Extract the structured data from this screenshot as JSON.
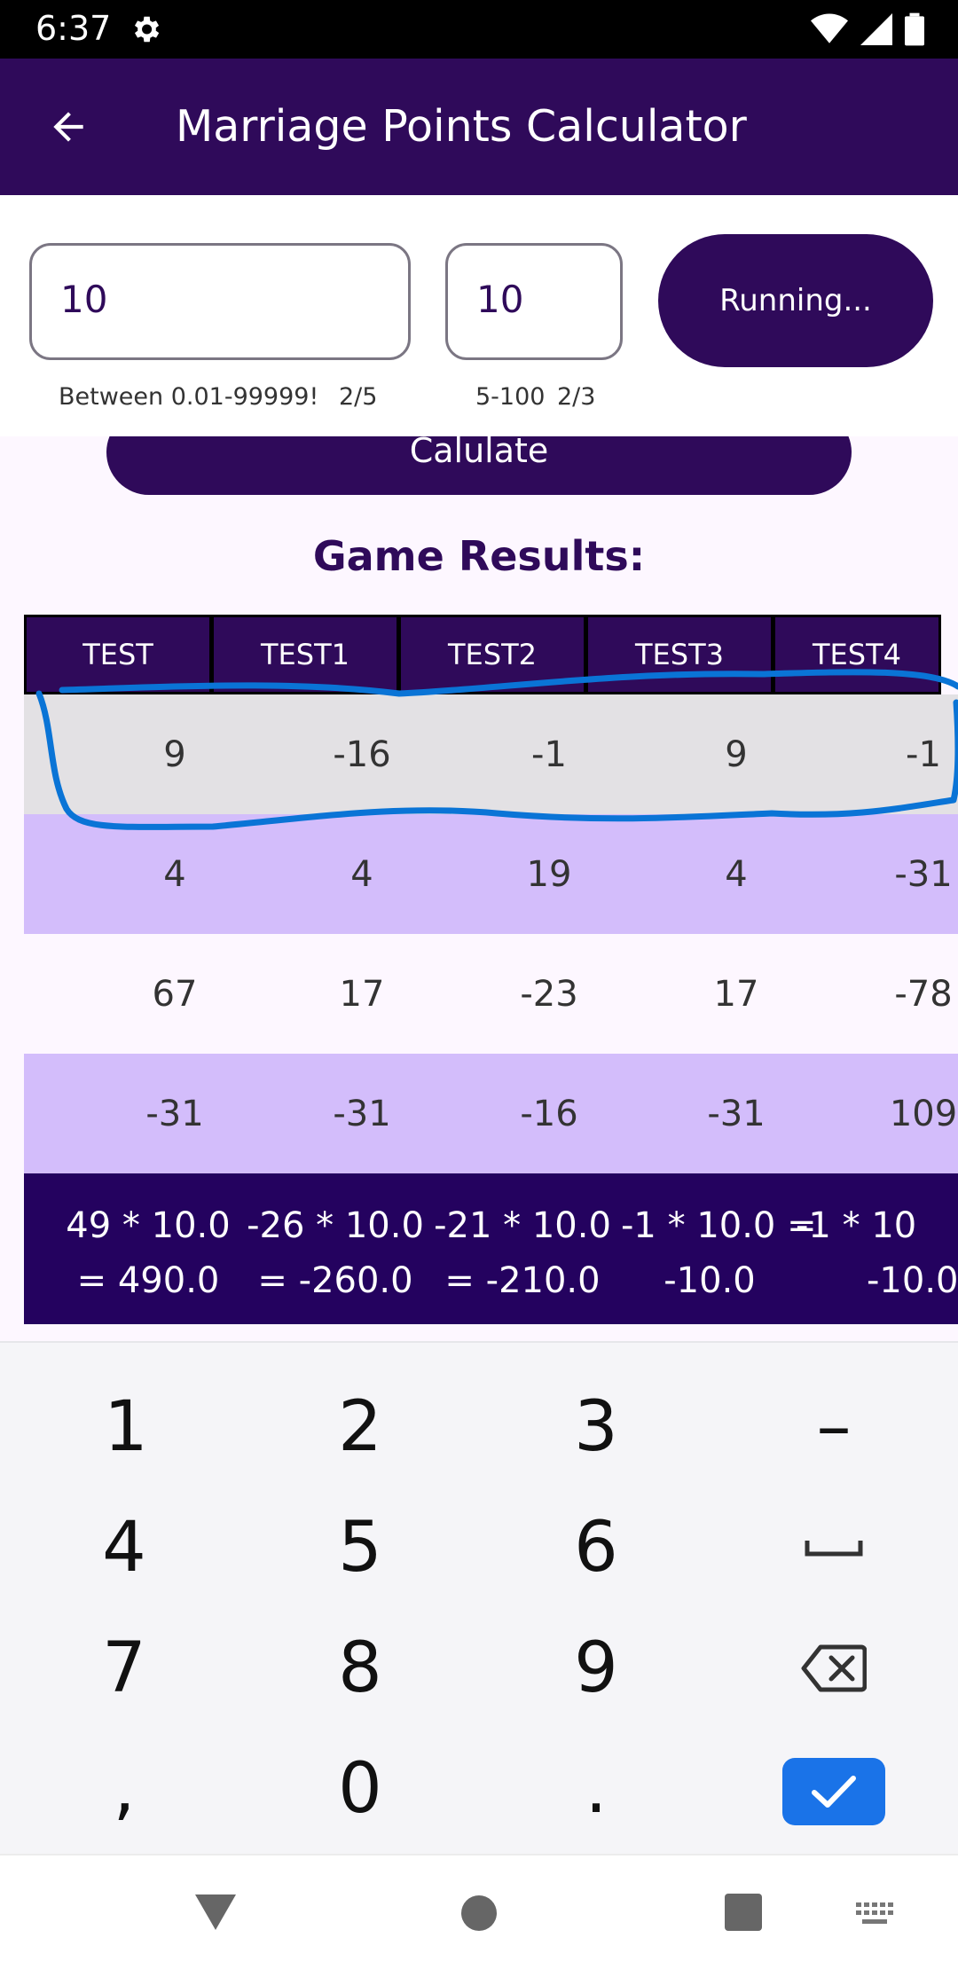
{
  "status_bar": {
    "time": "6:37"
  },
  "app_bar": {
    "title": "Marriage Points Calculator"
  },
  "inputs": {
    "amount": {
      "value": "10",
      "helper": "Between 0.01-99999!",
      "counter": "2/5"
    },
    "rounds": {
      "value": "10",
      "helper": "5-100",
      "counter": "2/3"
    },
    "running_label": "Running..."
  },
  "calculate_label": "Calulate",
  "results": {
    "title": "Game Results:",
    "columns": [
      "TEST",
      "TEST1",
      "TEST2",
      "TEST3",
      "TEST4"
    ],
    "rows": [
      [
        "9",
        "-16",
        "-1",
        "9",
        "-1"
      ],
      [
        "4",
        "4",
        "19",
        "4",
        "-31"
      ],
      [
        "67",
        "17",
        "-23",
        "17",
        "-78"
      ],
      [
        "-31",
        "-31",
        "-16",
        "-31",
        "109"
      ]
    ],
    "totals": [
      [
        "49 * 10.0",
        "= 490.0"
      ],
      [
        "-26 * 10.0",
        "= -260.0"
      ],
      [
        "-21 * 10.0",
        "= -210.0"
      ],
      [
        "-1 * 10.0 =",
        "-10.0"
      ],
      [
        "-1 * 10",
        "-10.0"
      ]
    ]
  },
  "keyboard": {
    "keys": [
      [
        "1",
        "2",
        "3",
        "–"
      ],
      [
        "4",
        "5",
        "6",
        "space"
      ],
      [
        "7",
        "8",
        "9",
        "backspace"
      ],
      [
        ",",
        "0",
        ".",
        "done"
      ]
    ]
  },
  "colors": {
    "primary": "#2f0a5a",
    "table_footer": "#24025f",
    "row_highlight": "#e3e1e4",
    "row_alt": "#d3bdfb",
    "scribble": "#0a74d6",
    "done_key": "#1a73e8"
  }
}
